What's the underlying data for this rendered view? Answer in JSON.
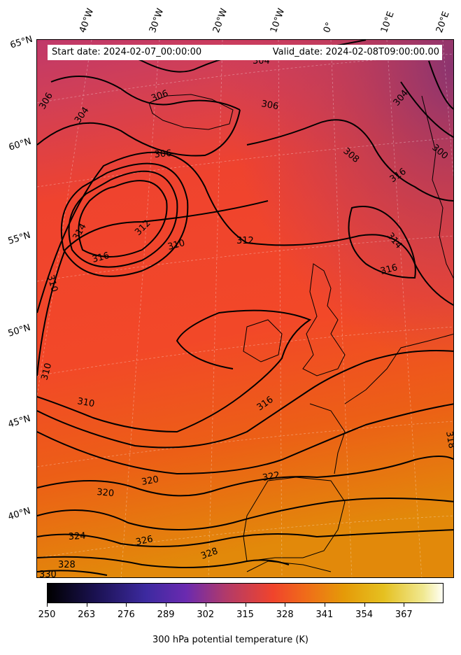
{
  "header": {
    "start_date": "Start date: 2024-02-07_00:00:00",
    "valid_date": "Valid_date: 2024-02-08T09:00:00.00"
  },
  "lon_labels": [
    "40°W",
    "30°W",
    "20°W",
    "10°W",
    "0°",
    "10°E",
    "20°E"
  ],
  "lat_labels": [
    "65°N",
    "60°N",
    "55°N",
    "50°N",
    "45°N",
    "40°N"
  ],
  "contour_labels": [
    "304",
    "306",
    "306",
    "304",
    "306",
    "306",
    "308",
    "300",
    "304",
    "314",
    "312",
    "316",
    "310",
    "312",
    "310",
    "316",
    "314",
    "316",
    "310",
    "310",
    "316",
    "318",
    "320",
    "320",
    "322",
    "324",
    "326",
    "328",
    "328",
    "330"
  ],
  "colorbar": {
    "label": "300 hPa potential temperature (K)",
    "ticks": [
      "250",
      "263",
      "276",
      "289",
      "302",
      "315",
      "328",
      "341",
      "354",
      "367"
    ],
    "colormap": "CMRmap",
    "range": [
      250,
      380
    ]
  },
  "colors": {
    "cold": "#a0306a",
    "mid": "#f0442c",
    "warm": "#e58a08"
  }
}
